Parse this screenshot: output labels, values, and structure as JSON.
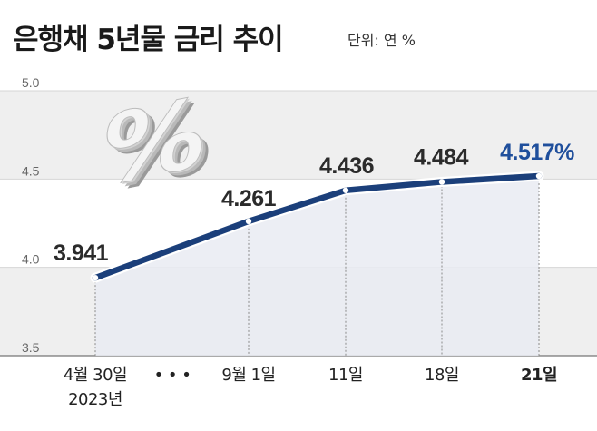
{
  "header": {
    "title": "은행채 5년물 금리 추이",
    "unit": "단위: 연 %"
  },
  "decoration": {
    "symbol": "%"
  },
  "chart_data": {
    "type": "line",
    "title": "은행채 5년물 금리 추이",
    "xlabel": "",
    "ylabel": "",
    "unit": "단위: 연 %",
    "ylim": [
      3.5,
      5.0
    ],
    "yticks": [
      "5.0",
      "4.5",
      "4.0",
      "3.5"
    ],
    "categories": [
      "4월 30일",
      "9월 1일",
      "11일",
      "18일",
      "21일"
    ],
    "category_sublabels": [
      "2023년",
      "",
      "",
      "",
      ""
    ],
    "ellipsis": "• • •",
    "values": [
      3.941,
      4.261,
      4.436,
      4.484,
      4.517
    ],
    "data_labels": [
      "3.941",
      "4.261",
      "4.436",
      "4.484",
      "4.517%"
    ],
    "grid": true,
    "colors": {
      "line": "#1b3f7a",
      "band": "#efefef",
      "area": "#e9ebf2",
      "last_label": "#1f4f9c"
    }
  }
}
